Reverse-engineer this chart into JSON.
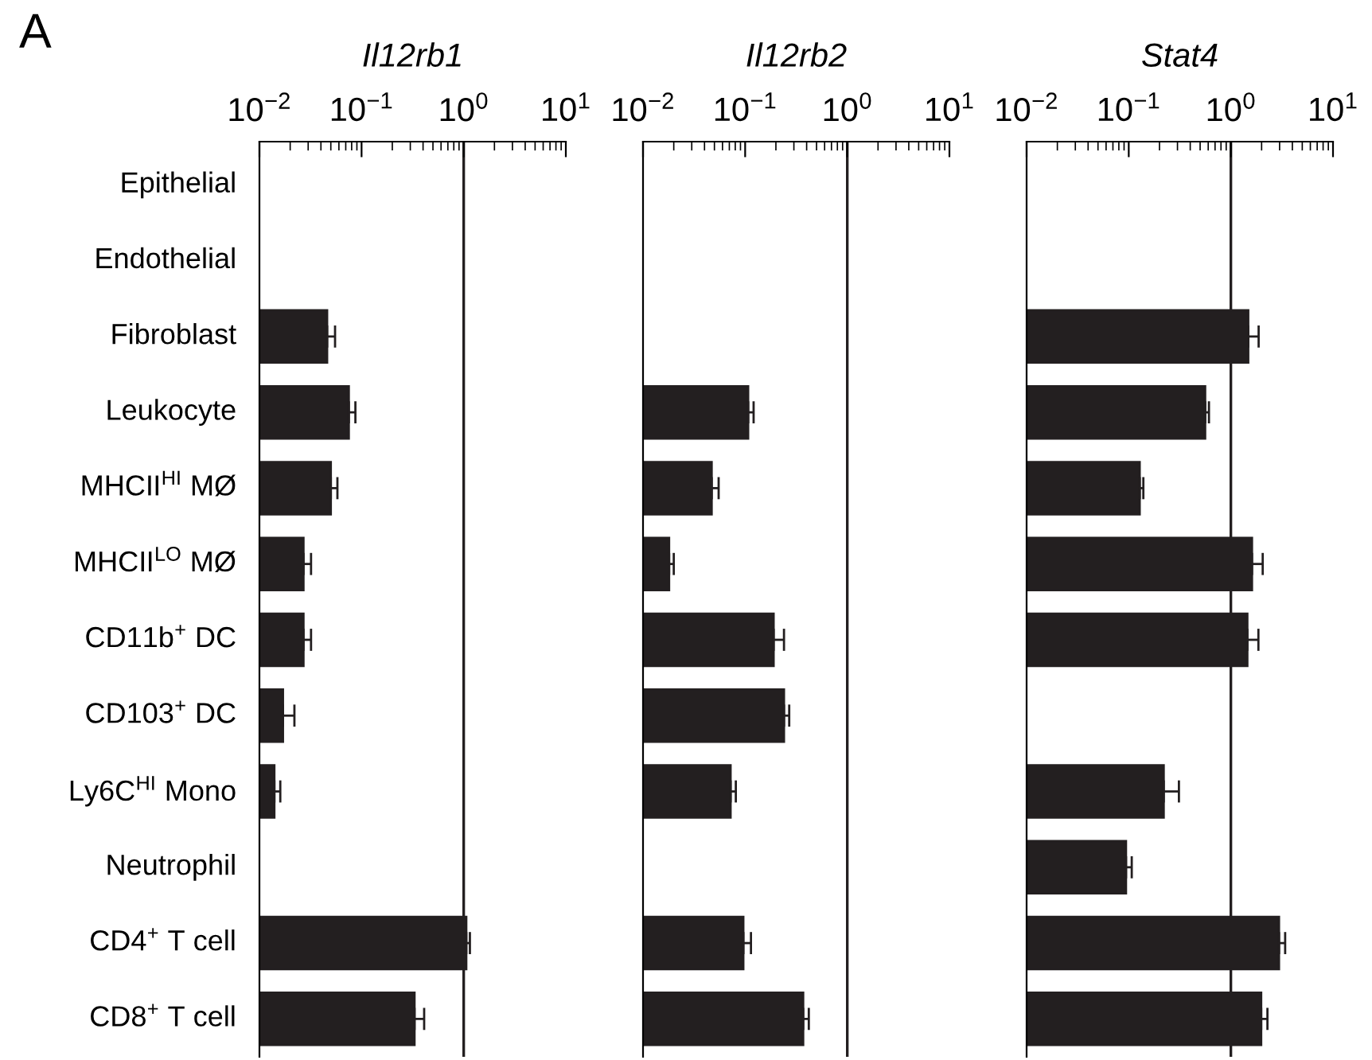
{
  "chart_data": [
    {
      "type": "bar",
      "orientation": "horizontal",
      "title": "Il12rb1",
      "annotations": [
        "A"
      ],
      "categories": [
        "Epithelial",
        "Endothelial",
        "Fibroblast",
        "Leukocyte",
        "MHCII$^{HI}$ MØ",
        "MHCII$^{LO}$ MØ",
        "CD11b$^{+}$ DC",
        "CD103$^{+}$ DC",
        "Ly6C$^{HI}$ Mono",
        "Neutrophil",
        "CD4$^{+}$ T cell",
        "CD8$^{+}$ T cell"
      ],
      "series": [
        {
          "color": "#231f20",
          "values": [
            null,
            null,
            0.046,
            0.075,
            0.05,
            0.027,
            0.027,
            0.017,
            0.014,
            null,
            1.06,
            0.33
          ],
          "errors": [
            null,
            null,
            [
              0.046,
              0.055
            ],
            [
              0.075,
              0.087
            ],
            [
              0.05,
              0.058
            ],
            [
              0.027,
              0.032
            ],
            [
              0.027,
              0.032
            ],
            [
              0.017,
              0.022
            ],
            [
              0.014,
              0.016
            ],
            null,
            [
              1.06,
              1.15
            ],
            [
              0.33,
              0.41
            ]
          ]
        }
      ],
      "log": "x",
      "xlim": [
        0.01,
        10
      ],
      "xticks": [
        {
          "value": 0.01,
          "label": "10$^{−2}$"
        },
        {
          "value": 0.1,
          "label": "10$^{−1}$"
        },
        {
          "value": 1,
          "label": "10$^{0}$"
        },
        {
          "value": 10,
          "label": "10$^{1}$"
        }
      ],
      "ref_lines": [
        {
          "axis": "x",
          "value": 1,
          "color": "#231f20"
        }
      ],
      "grid": false,
      "legend": false
    },
    {
      "type": "bar",
      "orientation": "horizontal",
      "title": "Il12rb2",
      "categories": [
        null,
        null,
        null,
        null,
        null,
        null,
        null,
        null,
        null,
        null,
        null,
        null
      ],
      "series": [
        {
          "color": "#231f20",
          "values": [
            null,
            null,
            null,
            0.107,
            0.047,
            0.018,
            0.19,
            0.24,
            0.072,
            null,
            0.096,
            0.37
          ],
          "errors": [
            null,
            null,
            null,
            [
              0.107,
              0.121
            ],
            [
              0.047,
              0.055
            ],
            [
              0.018,
              0.02
            ],
            [
              0.19,
              0.24
            ],
            [
              0.24,
              0.27
            ],
            [
              0.072,
              0.081
            ],
            null,
            [
              0.096,
              0.114
            ],
            [
              0.37,
              0.42
            ]
          ]
        }
      ],
      "log": "x",
      "xlim": [
        0.01,
        10
      ],
      "xticks": [
        {
          "value": 0.01,
          "label": "10$^{−2}$"
        },
        {
          "value": 0.1,
          "label": "10$^{−1}$"
        },
        {
          "value": 1,
          "label": "10$^{0}$"
        },
        {
          "value": 10,
          "label": "10$^{1}$"
        }
      ],
      "ref_lines": [
        {
          "axis": "x",
          "value": 1,
          "color": "#231f20"
        }
      ],
      "tick_labels": "x",
      "grid": false,
      "legend": false
    },
    {
      "type": "bar",
      "orientation": "horizontal",
      "title": "Stat4",
      "categories": [
        null,
        null,
        null,
        null,
        null,
        null,
        null,
        null,
        null,
        null,
        null,
        null
      ],
      "series": [
        {
          "color": "#231f20",
          "values": [
            null,
            null,
            1.48,
            0.56,
            0.128,
            1.61,
            1.45,
            null,
            0.22,
            0.094,
            2.96,
            1.98
          ],
          "errors": [
            null,
            null,
            [
              1.48,
              1.87
            ],
            [
              0.56,
              0.61
            ],
            [
              0.128,
              0.139
            ],
            [
              1.61,
              2.05
            ],
            [
              1.45,
              1.86
            ],
            null,
            [
              0.22,
              0.31
            ],
            [
              0.094,
              0.107
            ],
            [
              2.96,
              3.4
            ],
            [
              1.98,
              2.28
            ]
          ]
        }
      ],
      "log": "x",
      "xlim": [
        0.01,
        10
      ],
      "xticks": [
        {
          "value": 0.01,
          "label": "10$^{−2}$"
        },
        {
          "value": 0.1,
          "label": "10$^{−1}$"
        },
        {
          "value": 1,
          "label": "10$^{0}$"
        },
        {
          "value": 10,
          "label": "10$^{1}$"
        }
      ],
      "ref_lines": [
        {
          "axis": "x",
          "value": 1,
          "color": "#231f20"
        }
      ],
      "tick_labels": "x",
      "grid": false,
      "legend": false
    }
  ]
}
